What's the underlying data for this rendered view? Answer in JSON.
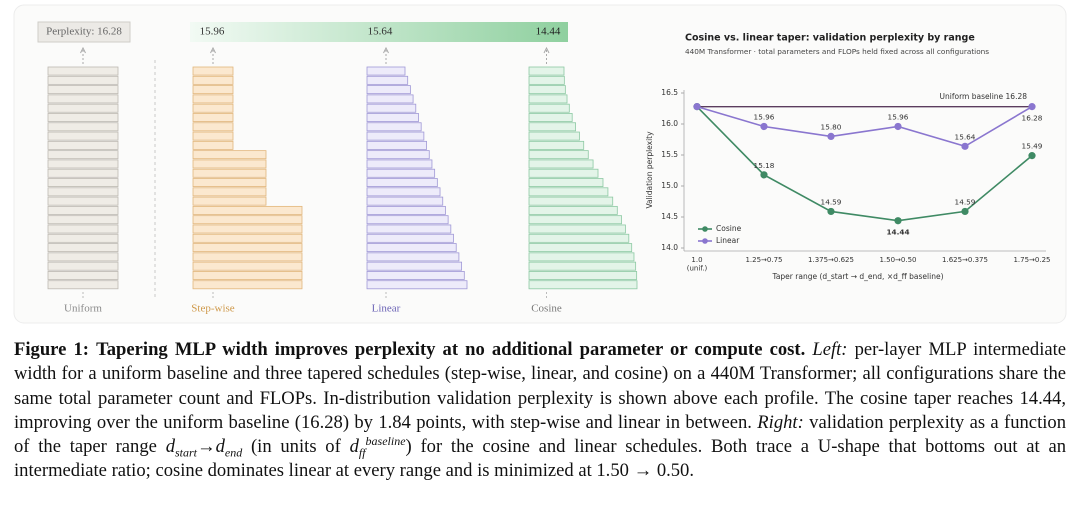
{
  "figure": {
    "profiles": [
      {
        "name": "Uniform",
        "perplexity": "Perplexity: 16.28"
      },
      {
        "name": "Step-wise",
        "perplexity": "15.96"
      },
      {
        "name": "Linear",
        "perplexity": "15.64"
      },
      {
        "name": "Cosine",
        "perplexity": "14.44"
      }
    ]
  },
  "chart_data": {
    "type": "line",
    "title": "Cosine vs. linear taper: validation perplexity by range",
    "subtitle": "440M Transformer · total parameters and FLOPs held fixed across all configurations",
    "xlabel": "Taper range (d_start → d_end, ×d_ff baseline)",
    "ylabel": "Validation perplexity",
    "categories": [
      "1.0\n(unif.)",
      "1.25→0.75",
      "1.375→0.625",
      "1.50→0.50",
      "1.625→0.375",
      "1.75→0.25"
    ],
    "series": [
      {
        "name": "Cosine",
        "color": "#3f8a64",
        "values": [
          16.28,
          15.18,
          14.59,
          14.44,
          14.59,
          15.49
        ],
        "value_labels": [
          null,
          "15.18",
          "14.59",
          "14.44",
          "14.59",
          "15.49"
        ]
      },
      {
        "name": "Linear",
        "color": "#8a76cf",
        "values": [
          16.28,
          15.96,
          15.8,
          15.96,
          15.64,
          16.28
        ],
        "value_labels": [
          null,
          "15.96",
          "15.80",
          "15.96",
          "15.64",
          "16.28"
        ]
      }
    ],
    "baseline": {
      "value": 16.28,
      "label": "Uniform baseline 16.28",
      "color": "#5b3d5e"
    },
    "ylim": [
      14.0,
      16.5
    ],
    "yticks": [
      {
        "value": 14.0,
        "label": "14.0"
      },
      14.5,
      {
        "value": 15.0,
        "label": "15.0"
      },
      15.5,
      {
        "value": 16.0,
        "label": "16.0"
      },
      16.5
    ],
    "legend": "lower left"
  },
  "caption": {
    "label": "Figure 1:",
    "headline": "Tapering MLP width improves perplexity at no additional parameter or compute cost.",
    "left_tag": "Left:",
    "left_text": "per-layer MLP intermediate width for a uniform baseline and three tapered schedules (step-wise, linear, and cosine) on a 440M Transformer; all configurations share the same total parameter count and FLOPs. In-distribution validation perplexity is shown above each profile. The cosine taper reaches 14.44, improving over the uniform baseline (16.28) by 1.84 points, with step-wise and linear in between.",
    "right_tag": "Right:",
    "right_text_1": "validation perplexity as a function of the taper range",
    "math_1": [
      "d",
      "start",
      "→",
      "d",
      "end"
    ],
    "right_text_2": "(in units of",
    "math_2": [
      "d",
      "ff",
      "baseline"
    ],
    "right_text_3": ") for the cosine and linear schedules. Both trace a U-shape that bottoms out at an intermediate ratio; cosine dominates linear at every range and is minimized at 1.50 → 0.50."
  }
}
